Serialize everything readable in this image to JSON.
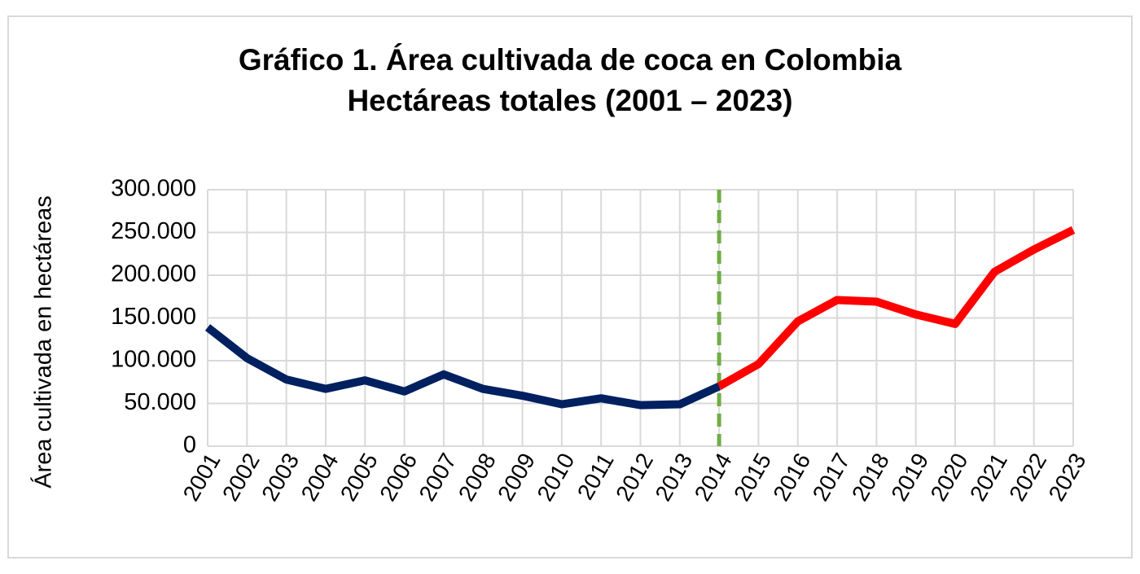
{
  "chart_data": {
    "type": "line",
    "title": [
      "Gráfico 1. Área cultivada de coca en Colombia",
      "Hectáreas totales (2001 – 2023)"
    ],
    "y_label": "Área cultivada en hectáreas",
    "categories": [
      "2001",
      "2002",
      "2003",
      "2004",
      "2005",
      "2006",
      "2007",
      "2008",
      "2009",
      "2010",
      "2011",
      "2012",
      "2013",
      "2014",
      "2015",
      "2016",
      "2017",
      "2018",
      "2019",
      "2020",
      "2021",
      "2022",
      "2023"
    ],
    "series": [
      {
        "color": "#002060",
        "values": [
          139000,
          103000,
          78000,
          67000,
          77000,
          64000,
          84000,
          67000,
          59000,
          49000,
          56000,
          48000,
          49000,
          70000,
          null,
          null,
          null,
          null,
          null,
          null,
          null,
          null,
          null
        ]
      },
      {
        "color": "#ff0000",
        "values": [
          null,
          null,
          null,
          null,
          null,
          null,
          null,
          null,
          null,
          null,
          null,
          null,
          null,
          70000,
          96000,
          146000,
          171000,
          169000,
          154000,
          143000,
          204000,
          230000,
          253000
        ]
      }
    ],
    "ylim": [
      0,
      300000
    ],
    "yticks": [
      0,
      {
        "value": 50000,
        "label": "50.000"
      },
      {
        "value": 100000,
        "label": "100.000"
      },
      {
        "value": 150000,
        "label": "150.000"
      },
      {
        "value": 200000,
        "label": "200.000"
      },
      {
        "value": 250000,
        "label": "250.000"
      },
      {
        "value": 300000,
        "label": "300.000"
      }
    ],
    "grid": true,
    "reference_line": {
      "x": "2014",
      "color": "#70ad47",
      "style": "dashed"
    }
  }
}
